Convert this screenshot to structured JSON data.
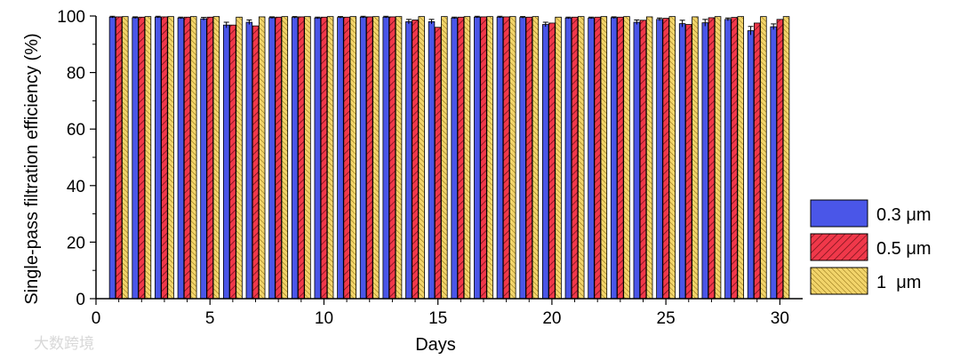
{
  "chart_data": {
    "type": "bar",
    "xlabel": "Days",
    "ylabel": "Single-pass filtration efficiency (%)",
    "xlim": [
      0,
      31
    ],
    "ylim": [
      0,
      100
    ],
    "xticks": [
      0,
      5,
      10,
      15,
      20,
      25,
      30
    ],
    "yticks": [
      0,
      20,
      40,
      60,
      80,
      100
    ],
    "legend_position": "right",
    "grid": false,
    "x": [
      1,
      2,
      3,
      4,
      5,
      6,
      7,
      8,
      9,
      10,
      11,
      12,
      13,
      14,
      15,
      16,
      17,
      18,
      19,
      20,
      21,
      22,
      23,
      24,
      25,
      26,
      27,
      28,
      29,
      30
    ],
    "series": [
      {
        "name": "0.3 μm",
        "color": "#4a56e8",
        "hatch": "none",
        "values": [
          99.6,
          99.4,
          99.6,
          99.3,
          99.0,
          96.8,
          97.8,
          99.4,
          99.5,
          99.3,
          99.5,
          99.6,
          99.6,
          98.0,
          98.0,
          99.3,
          99.6,
          99.6,
          99.5,
          97.0,
          99.3,
          99.3,
          99.4,
          97.8,
          98.8,
          97.3,
          97.6,
          98.8,
          94.8,
          96.2
        ],
        "errors": [
          0.3,
          0.3,
          0.3,
          0.3,
          0.5,
          1.0,
          0.8,
          0.3,
          0.3,
          0.3,
          0.3,
          0.3,
          0.3,
          0.8,
          0.8,
          0.3,
          0.3,
          0.3,
          0.3,
          0.8,
          0.3,
          0.3,
          0.3,
          0.8,
          0.5,
          1.2,
          1.2,
          0.5,
          1.5,
          1.0
        ]
      },
      {
        "name": "0.5 μm",
        "color": "#f0384a",
        "hatch": "diagonal",
        "values": [
          99.7,
          99.6,
          99.7,
          99.6,
          99.6,
          96.8,
          96.5,
          99.6,
          99.7,
          99.6,
          99.6,
          99.7,
          99.7,
          98.6,
          96.0,
          99.6,
          99.7,
          99.7,
          99.6,
          97.5,
          99.6,
          99.6,
          99.6,
          98.5,
          99.2,
          97.0,
          99.4,
          99.5,
          97.5,
          98.8
        ]
      },
      {
        "name": "1  μm",
        "color": "#f2d46a",
        "hatch": "dense-diagonal",
        "values": [
          99.8,
          99.8,
          99.8,
          99.8,
          99.8,
          99.6,
          99.7,
          99.8,
          99.8,
          99.8,
          99.8,
          99.8,
          99.8,
          99.8,
          99.8,
          99.8,
          99.8,
          99.8,
          99.8,
          99.6,
          99.8,
          99.8,
          99.8,
          99.7,
          99.8,
          99.7,
          99.8,
          99.8,
          99.8,
          99.8
        ]
      }
    ]
  },
  "watermark": "大数跨境"
}
